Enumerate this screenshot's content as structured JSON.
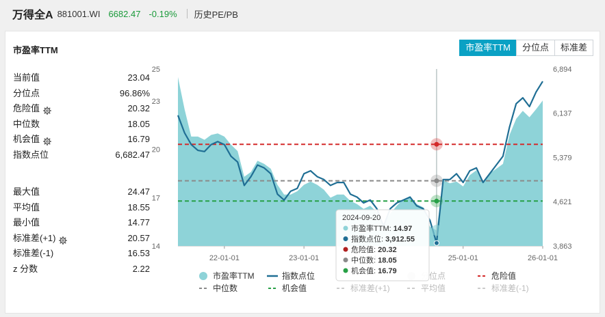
{
  "header": {
    "name": "万得全A",
    "code": "881001.WI",
    "price": "6682.47",
    "change": "-0.19%",
    "link": "历史PE/PB"
  },
  "panel": {
    "title": "市盈率TTM",
    "tabs": [
      "市盈率TTM",
      "分位点",
      "标准差"
    ],
    "active_tab": 0
  },
  "stats_top": [
    {
      "label": "当前值",
      "value": "23.04",
      "gear": false
    },
    {
      "label": "分位点",
      "value": "96.86%",
      "gear": false
    },
    {
      "label": "危险值",
      "value": "20.32",
      "gear": true
    },
    {
      "label": "中位数",
      "value": "18.05",
      "gear": false
    },
    {
      "label": "机会值",
      "value": "16.79",
      "gear": true
    },
    {
      "label": "指数点位",
      "value": "6,682.47",
      "gear": false
    }
  ],
  "stats_bottom": [
    {
      "label": "最大值",
      "value": "24.47",
      "gear": false
    },
    {
      "label": "平均值",
      "value": "18.55",
      "gear": false
    },
    {
      "label": "最小值",
      "value": "14.77",
      "gear": false
    },
    {
      "label": "标准差(+1)",
      "value": "20.57",
      "gear": true
    },
    {
      "label": "标准差(-1)",
      "value": "16.53",
      "gear": false
    },
    {
      "label": "z 分数",
      "value": "2.22",
      "gear": false
    }
  ],
  "colors": {
    "pe_area": "#8ed3d8",
    "index_line": "#1f6e94",
    "danger": "#d42a2a",
    "median": "#8a8a8a",
    "opportunity": "#27a046",
    "accent": "#0aa1c4",
    "green_text": "#1a9a3a"
  },
  "chart_data": {
    "type": "area",
    "x_ticks": [
      "22-01-01",
      "23-01-01",
      "24-01-01",
      "25-01-01",
      "26-01-01"
    ],
    "y_left_ticks": [
      "25",
      "23",
      "20",
      "17",
      "14"
    ],
    "y_right_ticks": [
      "6,894",
      "6,137",
      "5,379",
      "4,621",
      "3,863"
    ],
    "ylim_left": [
      14,
      25
    ],
    "ylim_right": [
      3863,
      6894
    ],
    "x": [
      "2021-06",
      "2021-07",
      "2021-08",
      "2021-09",
      "2021-10",
      "2021-11",
      "2021-12",
      "2022-01",
      "2022-02",
      "2022-03",
      "2022-04",
      "2022-05",
      "2022-06",
      "2022-07",
      "2022-08",
      "2022-09",
      "2022-10",
      "2022-11",
      "2022-12",
      "2023-01",
      "2023-02",
      "2023-03",
      "2023-04",
      "2023-05",
      "2023-06",
      "2023-07",
      "2023-08",
      "2023-09",
      "2023-10",
      "2023-11",
      "2023-12",
      "2024-01",
      "2024-02",
      "2024-03",
      "2024-04",
      "2024-05",
      "2024-06",
      "2024-07",
      "2024-08",
      "2024-09",
      "2024-10",
      "2024-11",
      "2024-12",
      "2025-01",
      "2025-02",
      "2025-03",
      "2025-04",
      "2025-05",
      "2025-06",
      "2025-07",
      "2025-08",
      "2025-09",
      "2025-10",
      "2025-11",
      "2025-12",
      "2026-01"
    ],
    "series": [
      {
        "name": "市盈率TTM",
        "axis": "left",
        "values": [
          24.5,
          22.5,
          20.8,
          20.8,
          20.6,
          20.9,
          21.0,
          20.8,
          20.3,
          19.9,
          18.3,
          18.6,
          19.3,
          19.1,
          18.8,
          17.8,
          17.2,
          17.2,
          17.4,
          17.8,
          18.0,
          17.8,
          17.5,
          17.0,
          17.2,
          17.2,
          16.8,
          16.6,
          16.3,
          16.5,
          16.1,
          15.4,
          16.0,
          16.5,
          16.9,
          17.1,
          16.6,
          16.4,
          15.2,
          14.97,
          18.1,
          17.9,
          18.0,
          17.7,
          18.4,
          18.7,
          17.9,
          18.5,
          18.8,
          19.1,
          20.9,
          21.9,
          22.4,
          22.0,
          22.5,
          23.04
        ]
      },
      {
        "name": "指数点位",
        "axis": "right",
        "values": [
          6100,
          5800,
          5600,
          5500,
          5480,
          5600,
          5650,
          5600,
          5400,
          5300,
          4900,
          5050,
          5250,
          5200,
          5100,
          4750,
          4650,
          4800,
          4850,
          5100,
          5150,
          5050,
          5000,
          4900,
          4950,
          4950,
          4750,
          4700,
          4600,
          4650,
          4500,
          4200,
          4500,
          4600,
          4650,
          4700,
          4550,
          4500,
          4300,
          3912.55,
          5000,
          5000,
          5100,
          4950,
          5150,
          5200,
          4950,
          5100,
          5250,
          5400,
          5900,
          6300,
          6400,
          6250,
          6500,
          6682.47
        ]
      }
    ],
    "reference_lines": [
      {
        "name": "危险值",
        "value": 20.32
      },
      {
        "name": "中位数",
        "value": 18.05
      },
      {
        "name": "机会值",
        "value": 16.79
      }
    ],
    "tooltip": {
      "date": "2024-09-20",
      "index": 39,
      "rows": [
        {
          "label": "市盈率TTM:",
          "value": "14.97",
          "color": "#8ed3d8"
        },
        {
          "label": "指数点位:",
          "value": "3,912.55",
          "color": "#1f6e94"
        },
        {
          "label": "危险值:",
          "value": "20.32",
          "color": "#b02020"
        },
        {
          "label": "中位数:",
          "value": "18.05",
          "color": "#8a8a8a"
        },
        {
          "label": "机会值:",
          "value": "16.79",
          "color": "#27a046"
        }
      ]
    },
    "legend": [
      {
        "label": "市盈率TTM",
        "kind": "dot",
        "color": "#8ed3d8",
        "active": true
      },
      {
        "label": "指数点位",
        "kind": "line",
        "color": "#1f6e94",
        "active": true
      },
      {
        "label": "分位点",
        "kind": "dot",
        "color": "#cccccc",
        "active": false
      },
      {
        "label": "危险值",
        "kind": "dash",
        "color": "#d42a2a",
        "active": true
      },
      {
        "label": "中位数",
        "kind": "dash",
        "color": "#8a8a8a",
        "active": true
      },
      {
        "label": "机会值",
        "kind": "dash",
        "color": "#27a046",
        "active": true
      },
      {
        "label": "标准差(+1)",
        "kind": "dash",
        "color": "#cccccc",
        "active": false
      },
      {
        "label": "平均值",
        "kind": "dash",
        "color": "#cccccc",
        "active": false
      },
      {
        "label": "标准差(-1)",
        "kind": "dash",
        "color": "#cccccc",
        "active": false
      }
    ]
  }
}
